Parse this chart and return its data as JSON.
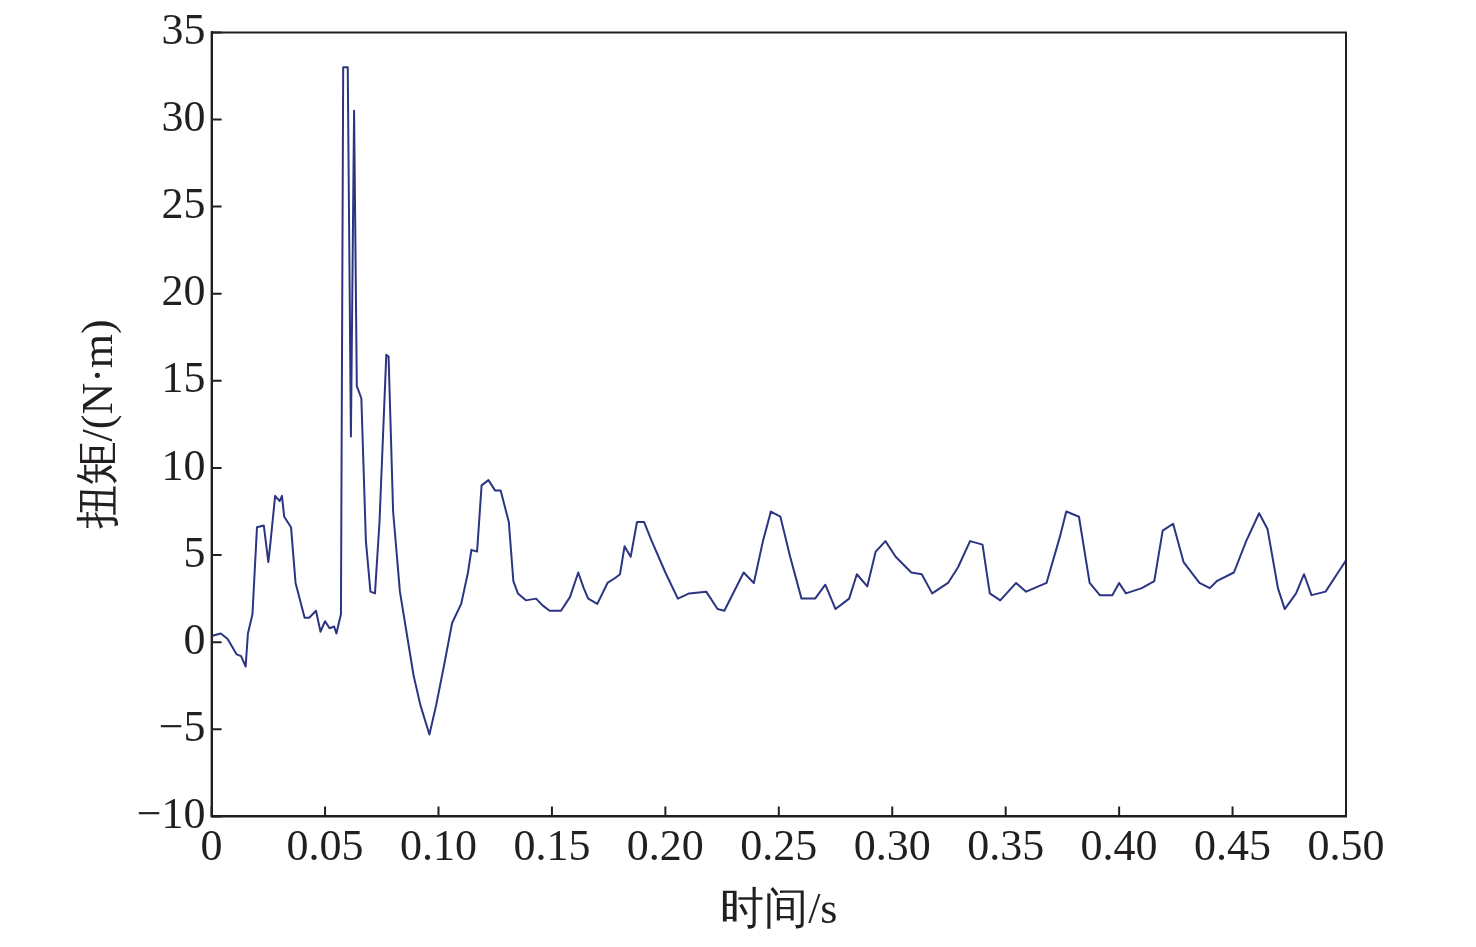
{
  "chart_data": {
    "type": "line",
    "xlabel": "时间/s",
    "ylabel": "扭矩/(N·m)",
    "xlim": [
      0,
      0.5
    ],
    "xticks": [
      0,
      {
        "value": 0.05,
        "label": "0.05"
      },
      {
        "value": 0.1,
        "label": "0.10"
      },
      {
        "value": 0.15,
        "label": "0.15"
      },
      {
        "value": 0.2,
        "label": "0.20"
      },
      {
        "value": 0.25,
        "label": "0.25"
      },
      {
        "value": 0.3,
        "label": "0.30"
      },
      {
        "value": 0.35,
        "label": "0.35"
      },
      {
        "value": 0.4,
        "label": "0.40"
      },
      {
        "value": 0.45,
        "label": "0.45"
      },
      {
        "value": 0.5,
        "label": "0.50"
      }
    ],
    "ylim": [
      -10,
      35
    ],
    "yticks": [
      {
        "value": -10,
        "label": "−10"
      },
      {
        "value": -5,
        "label": "−5"
      },
      0,
      5,
      10,
      15,
      20,
      25,
      30,
      35
    ],
    "grid": false,
    "legend": false,
    "marker": "none",
    "line_style": "solid",
    "series": [
      {
        "color": "#2b3582",
        "x": [
          0,
          0.004,
          0.007,
          0.011,
          0.013,
          0.015,
          0.016,
          0.018,
          0.02,
          0.023,
          0.025,
          0.026,
          0.028,
          0.03,
          0.031,
          0.032,
          0.035,
          0.037,
          0.041,
          0.043,
          0.046,
          0.048,
          0.05,
          0.052,
          0.054,
          0.055,
          0.057,
          0.058,
          0.06,
          0.0614,
          0.0628,
          0.064,
          0.066,
          0.068,
          0.07,
          0.072,
          0.074,
          0.077,
          0.078,
          0.08,
          0.083,
          0.086,
          0.089,
          0.092,
          0.096,
          0.099,
          0.1025,
          0.106,
          0.11,
          0.113,
          0.1145,
          0.117,
          0.119,
          0.122,
          0.125,
          0.1274,
          0.131,
          0.133,
          0.135,
          0.1385,
          0.143,
          0.146,
          0.149,
          0.154,
          0.158,
          0.1616,
          0.164,
          0.166,
          0.17,
          0.1745,
          0.178,
          0.18,
          0.182,
          0.1847,
          0.1875,
          0.1906,
          0.194,
          0.2,
          0.2055,
          0.2105,
          0.218,
          0.223,
          0.226,
          0.2345,
          0.239,
          0.243,
          0.2465,
          0.2507,
          0.255,
          0.26,
          0.266,
          0.2705,
          0.275,
          0.281,
          0.2844,
          0.289,
          0.2927,
          0.297,
          0.3015,
          0.3084,
          0.313,
          0.3176,
          0.3246,
          0.329,
          0.3343,
          0.3398,
          0.343,
          0.3476,
          0.3546,
          0.359,
          0.368,
          0.374,
          0.3767,
          0.3823,
          0.387,
          0.3915,
          0.397,
          0.4,
          0.403,
          0.41,
          0.4155,
          0.4192,
          0.4238,
          0.4284,
          0.4354,
          0.44,
          0.443,
          0.4506,
          0.456,
          0.4617,
          0.4654,
          0.47,
          0.473,
          0.478,
          0.4815,
          0.4848,
          0.491,
          0.497,
          0.5
        ],
        "values": [
          0.35,
          0.5,
          0.2,
          -0.7,
          -0.8,
          -1.4,
          0.5,
          1.6,
          6.6,
          6.7,
          4.6,
          5.8,
          8.4,
          8.1,
          8.4,
          7.2,
          6.6,
          3.4,
          1.4,
          1.4,
          1.8,
          0.6,
          1.2,
          0.8,
          0.9,
          0.5,
          1.6,
          33,
          33,
          11.8,
          30.5,
          14.7,
          14,
          5.8,
          2.9,
          2.8,
          6.9,
          16.5,
          16.4,
          7.5,
          2.9,
          0.5,
          -1.9,
          -3.6,
          -5.3,
          -3.6,
          -1.3,
          1.1,
          2.2,
          4,
          5.3,
          5.2,
          9,
          9.3,
          8.7,
          8.7,
          6.9,
          3.5,
          2.8,
          2.4,
          2.5,
          2.1,
          1.8,
          1.8,
          2.6,
          4,
          3.1,
          2.5,
          2.2,
          3.4,
          3.7,
          3.9,
          5.5,
          4.9,
          6.9,
          6.9,
          5.8,
          4,
          2.5,
          2.8,
          2.9,
          1.9,
          1.8,
          4,
          3.4,
          5.8,
          7.5,
          7.2,
          4.9,
          2.5,
          2.5,
          3.3,
          1.9,
          2.5,
          3.9,
          3.2,
          5.2,
          5.8,
          4.9,
          4,
          3.9,
          2.8,
          3.4,
          4.3,
          5.8,
          5.6,
          2.8,
          2.4,
          3.4,
          2.9,
          3.4,
          6.1,
          7.5,
          7.2,
          3.4,
          2.7,
          2.7,
          3.4,
          2.8,
          3.1,
          3.5,
          6.4,
          6.8,
          4.6,
          3.4,
          3.1,
          3.5,
          4,
          5.8,
          7.4,
          6.5,
          3.1,
          1.9,
          2.8,
          3.9,
          2.7,
          2.9,
          4.1,
          4.7
        ]
      }
    ]
  }
}
